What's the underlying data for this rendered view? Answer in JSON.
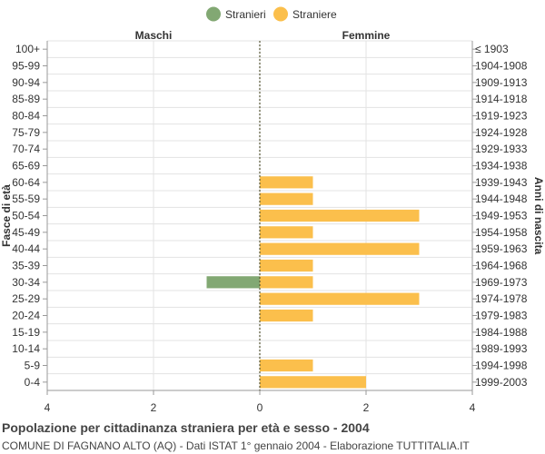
{
  "chart_data": {
    "type": "bar",
    "orientation": "horizontal",
    "title": "Popolazione per cittadinanza straniera per età e sesso - 2004",
    "subtitle": "COMUNE DI FAGNANO ALTO (AQ) - Dati ISTAT 1° gennaio 2004 - Elaborazione TUTTITALIA.IT",
    "left_header": "Maschi",
    "right_header": "Femmine",
    "y_label_left": "Fasce di età",
    "y_label_right": "Anni di nascita",
    "legend": [
      {
        "name": "Stranieri",
        "color": "#82a873"
      },
      {
        "name": "Straniere",
        "color": "#fbbf4c"
      }
    ],
    "age_groups": [
      "100+",
      "95-99",
      "90-94",
      "85-89",
      "80-84",
      "75-79",
      "70-74",
      "65-69",
      "60-64",
      "55-59",
      "50-54",
      "45-49",
      "40-44",
      "35-39",
      "30-34",
      "25-29",
      "20-24",
      "15-19",
      "10-14",
      "5-9",
      "0-4"
    ],
    "birth_years": [
      "≤ 1903",
      "1904-1908",
      "1909-1913",
      "1914-1918",
      "1919-1923",
      "1924-1928",
      "1929-1933",
      "1934-1938",
      "1939-1943",
      "1944-1948",
      "1949-1953",
      "1954-1958",
      "1959-1963",
      "1964-1968",
      "1969-1973",
      "1974-1978",
      "1979-1983",
      "1984-1988",
      "1989-1993",
      "1994-1998",
      "1999-2003"
    ],
    "series": [
      {
        "name": "Stranieri",
        "side": "left",
        "color": "#82a873",
        "values": [
          0,
          0,
          0,
          0,
          0,
          0,
          0,
          0,
          0,
          0,
          0,
          0,
          0,
          0,
          1,
          0,
          0,
          0,
          0,
          0,
          0
        ]
      },
      {
        "name": "Straniere",
        "side": "right",
        "color": "#fbbf4c",
        "values": [
          0,
          0,
          0,
          0,
          0,
          0,
          0,
          0,
          1,
          1,
          3,
          1,
          3,
          1,
          1,
          3,
          1,
          0,
          0,
          1,
          2
        ]
      }
    ],
    "xlim": [
      -4,
      4
    ],
    "x_ticks": [
      -4,
      -2,
      0,
      2,
      4
    ],
    "x_tick_labels": [
      "4",
      "2",
      "0",
      "2",
      "4"
    ],
    "grid": true,
    "legend_position": "top"
  }
}
